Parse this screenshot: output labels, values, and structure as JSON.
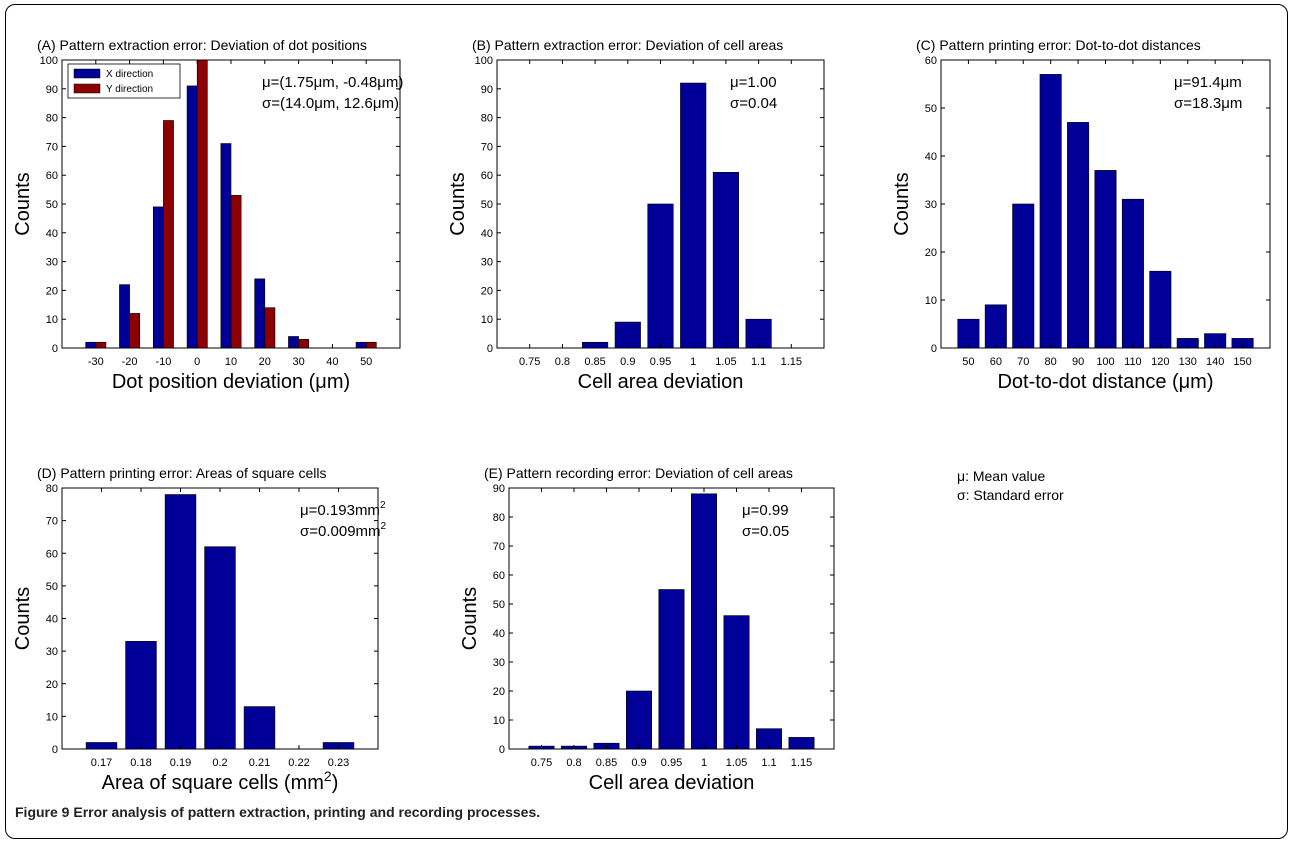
{
  "colors": {
    "blue": "#000099",
    "red": "#8b0000",
    "axis": "#000000"
  },
  "caption": {
    "label": "Figure 9",
    "text": " Error analysis of pattern extraction, printing and recording processes."
  },
  "notes": {
    "mu": "μ: Mean value",
    "sigma": "σ: Standard error"
  },
  "chart_data": [
    {
      "id": "A",
      "type": "bar",
      "title": "(A) Pattern extraction error: Deviation of dot positions",
      "xlabel": "Dot position deviation (μm)",
      "ylabel": "Counts",
      "categories": [
        "-30",
        "-20",
        "-10",
        "0",
        "10",
        "20",
        "30",
        "40",
        "50"
      ],
      "series": [
        {
          "name": "X direction",
          "color": "#000099",
          "values": [
            2,
            22,
            49,
            91,
            71,
            24,
            4,
            0,
            2
          ]
        },
        {
          "name": "Y direction",
          "color": "#8b0000",
          "values": [
            2,
            12,
            79,
            100,
            53,
            14,
            3,
            0,
            2
          ]
        }
      ],
      "ylim": [
        0,
        100
      ],
      "yticks": [
        0,
        10,
        20,
        30,
        40,
        50,
        60,
        70,
        80,
        90,
        100
      ],
      "legend": "top-left",
      "stats": [
        "μ=(1.75μm, -0.48μm)",
        "σ=(14.0μm, 12.6μm)"
      ]
    },
    {
      "id": "B",
      "type": "bar",
      "title": "(B) Pattern extraction error: Deviation of cell areas",
      "xlabel": "Cell area deviation",
      "ylabel": "Counts",
      "categories": [
        "0.75",
        "0.8",
        "0.85",
        "0.9",
        "0.95",
        "1",
        "1.05",
        "1.1",
        "1.15"
      ],
      "series": [
        {
          "color": "#000099",
          "values": [
            0,
            0,
            2,
            9,
            50,
            92,
            61,
            10,
            0
          ]
        }
      ],
      "ylim": [
        0,
        100
      ],
      "yticks": [
        0,
        10,
        20,
        30,
        40,
        50,
        60,
        70,
        80,
        90,
        100
      ],
      "stats": [
        "μ=1.00",
        "σ=0.04"
      ]
    },
    {
      "id": "C",
      "type": "bar",
      "title": "(C) Pattern printing error: Dot-to-dot distances",
      "xlabel": "Dot-to-dot distance (μm)",
      "ylabel": "Counts",
      "categories": [
        "50",
        "60",
        "70",
        "80",
        "90",
        "100",
        "110",
        "120",
        "130",
        "140",
        "150"
      ],
      "series": [
        {
          "color": "#000099",
          "values": [
            6,
            9,
            30,
            57,
            47,
            37,
            31,
            16,
            2,
            3,
            2
          ]
        }
      ],
      "ylim": [
        0,
        60
      ],
      "yticks": [
        0,
        10,
        20,
        30,
        40,
        50,
        60
      ],
      "stats": [
        "μ=91.4μm",
        "σ=18.3μm"
      ]
    },
    {
      "id": "D",
      "type": "bar",
      "title": "(D) Pattern printing error: Areas of square cells",
      "xlabel": "Area of square cells (mm",
      "xlabel_sup": "2",
      "xlabel_end": ")",
      "ylabel": "Counts",
      "categories": [
        "0.17",
        "0.18",
        "0.19",
        "0.2",
        "0.21",
        "0.22",
        "0.23"
      ],
      "series": [
        {
          "color": "#000099",
          "values": [
            2,
            33,
            78,
            62,
            13,
            0,
            2
          ]
        }
      ],
      "ylim": [
        0,
        80
      ],
      "yticks": [
        0,
        10,
        20,
        30,
        40,
        50,
        60,
        70,
        80
      ],
      "stats": [
        "μ=0.193mm",
        "σ=0.009mm"
      ],
      "stats_sup": "2"
    },
    {
      "id": "E",
      "type": "bar",
      "title": "(E) Pattern recording error: Deviation of cell areas",
      "xlabel": "Cell area deviation",
      "ylabel": "Counts",
      "categories": [
        "0.75",
        "0.8",
        "0.85",
        "0.9",
        "0.95",
        "1",
        "1.05",
        "1.1",
        "1.15"
      ],
      "series": [
        {
          "color": "#000099",
          "values": [
            1,
            1,
            2,
            20,
            55,
            88,
            46,
            7,
            4
          ]
        }
      ],
      "ylim": [
        0,
        90
      ],
      "yticks": [
        0,
        10,
        20,
        30,
        40,
        50,
        60,
        70,
        80,
        90
      ],
      "stats": [
        "μ=0.99",
        "σ=0.05"
      ]
    }
  ]
}
